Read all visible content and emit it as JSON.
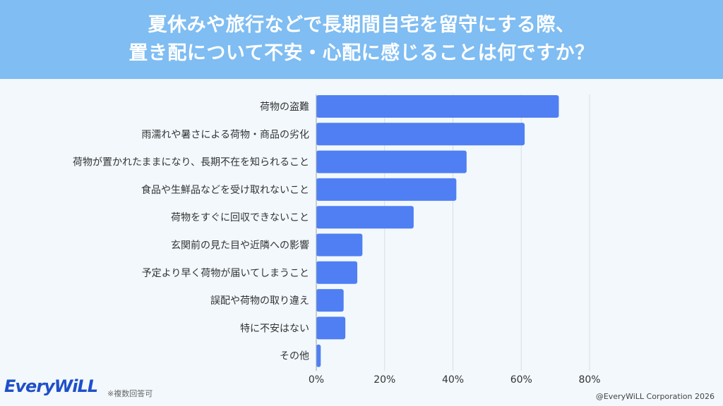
{
  "header": {
    "line1": "夏休みや旅行などで長期間自宅を留守にする際、",
    "line2": "置き配について不安・心配に感じることは何ですか？"
  },
  "chart_data": {
    "type": "bar",
    "orientation": "horizontal",
    "categories": [
      "荷物の盗難",
      "雨濡れや暑さによる荷物・商品の劣化",
      "荷物が置かれたままになり、長期不在を知られること",
      "食品や生鮮品などを受け取れないこと",
      "荷物をすぐに回収できないこと",
      "玄関前の見た目や近隣への影響",
      "予定より早く荷物が届いてしまうこと",
      "誤配や荷物の取り違え",
      "特に不安はない",
      "その他"
    ],
    "values": [
      71,
      61,
      44,
      41,
      28.5,
      13.5,
      12,
      8,
      8.5,
      1.3
    ],
    "xlim": [
      0,
      80
    ],
    "xticks": [
      0,
      20,
      40,
      60,
      80
    ],
    "tick_labels": [
      "0%",
      "20%",
      "40%",
      "60%",
      "80%"
    ],
    "grid": true,
    "bar_color": "#4f7ff2"
  },
  "footer": {
    "logo": "EveryWiLL",
    "note": "※複数回答可",
    "copyright": "@EveryWiLL Corporation 2026"
  }
}
